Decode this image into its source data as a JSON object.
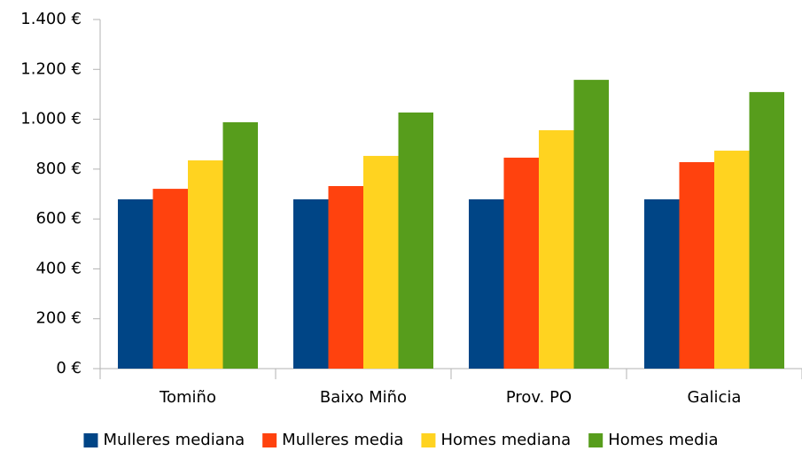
{
  "chart_data": {
    "type": "bar",
    "categories": [
      "Tomiño",
      "Baixo Miño",
      "Prov. PO",
      "Galicia"
    ],
    "series": [
      {
        "name": "Mulleres mediana",
        "color": "#004586",
        "values": [
          679,
          679,
          679,
          679
        ]
      },
      {
        "name": "Mulleres media",
        "color": "#ff420e",
        "values": [
          721,
          732,
          846,
          828
        ]
      },
      {
        "name": "Homes mediana",
        "color": "#ffd320",
        "values": [
          835,
          853,
          956,
          874
        ]
      },
      {
        "name": "Homes media",
        "color": "#579d1c",
        "values": [
          988,
          1027,
          1158,
          1109
        ]
      }
    ],
    "ylim": [
      0,
      1400
    ],
    "yticks": [
      {
        "value": 0,
        "label": "0 €"
      },
      {
        "value": 200,
        "label": "200 €"
      },
      {
        "value": 400,
        "label": "400 €"
      },
      {
        "value": 600,
        "label": "600 €"
      },
      {
        "value": 800,
        "label": "800 €"
      },
      {
        "value": 1000,
        "label": "1.000 €"
      },
      {
        "value": 1200,
        "label": "1.200 €"
      },
      {
        "value": 1400,
        "label": "1.400 €"
      }
    ],
    "grid": false,
    "legend": "bottom"
  }
}
